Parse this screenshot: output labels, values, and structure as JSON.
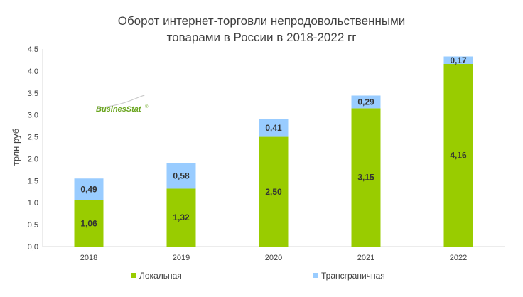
{
  "chart_data": {
    "type": "bar",
    "stacked": true,
    "title_lines": [
      "Оборот интернет-торговли непродовольственными",
      "товарами в России в 2018-2022 гг"
    ],
    "ylabel": "трлн руб",
    "xlabel": "",
    "ylim": [
      0,
      4.5
    ],
    "y_ticks": [
      "0,0",
      "0,5",
      "1,0",
      "1,5",
      "2,0",
      "2,5",
      "3,0",
      "3,5",
      "4,0",
      "4,5"
    ],
    "categories": [
      "2018",
      "2019",
      "2020",
      "2021",
      "2022"
    ],
    "series": [
      {
        "name": "Локальная",
        "values": [
          1.06,
          1.32,
          2.5,
          3.15,
          4.16
        ],
        "labels": [
          "1,06",
          "1,32",
          "2,50",
          "3,15",
          "4,16"
        ],
        "color": "#99cc00"
      },
      {
        "name": "Трансграничная",
        "values": [
          0.49,
          0.58,
          0.41,
          0.29,
          0.17
        ],
        "labels": [
          "0,49",
          "0,58",
          "0,41",
          "0,29",
          "0,17"
        ],
        "color": "#99ccff"
      }
    ],
    "legend_position": "bottom",
    "grid": false
  },
  "logo": {
    "text": "BusinesStat",
    "mark": "®",
    "color": "#6aa51f"
  }
}
